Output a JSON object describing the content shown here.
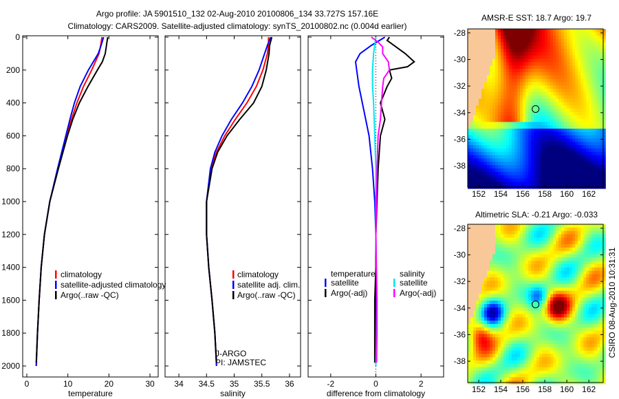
{
  "title_line1": "Argo profile: JA 5901510_132 02-Aug-2010 20100806_134 33.727S 157.16E",
  "title_line2": "Climatology: CARS2009. Satellite-adjusted climatology: synTS_20100802.nc (0.004d earlier)",
  "colors": {
    "climatology": "#ff0000",
    "satellite": "#0000ff",
    "argo": "#000000",
    "sal_satellite": "#00e5ee",
    "sal_argo": "#ff00ff",
    "land": "#f9c898"
  },
  "chart_data": [
    {
      "type": "line",
      "xlabel": "temperature",
      "xlim": [
        -1,
        32
      ],
      "xticks": [
        "0",
        "10",
        "20",
        "30"
      ],
      "xtick_values": [
        0,
        10,
        20,
        30
      ],
      "ylim": [
        0,
        2000
      ],
      "yticks": [
        "0",
        "200",
        "400",
        "600",
        "800",
        "1000",
        "1200",
        "1400",
        "1600",
        "1800",
        "2000"
      ],
      "ytick_values": [
        0,
        200,
        400,
        600,
        800,
        1000,
        1200,
        1400,
        1600,
        1800,
        2000
      ],
      "legend": [
        "climatology",
        "satellite-adjusted climatology",
        "Argo(..raw -QC)"
      ],
      "series": [
        {
          "name": "climatology",
          "color": "#ff0000",
          "depth": [
            0,
            50,
            100,
            200,
            300,
            400,
            500,
            600,
            800,
            1000,
            1200,
            1400,
            1600,
            1800,
            2000
          ],
          "values": [
            18.3,
            18.0,
            17.6,
            15.8,
            13.8,
            12.2,
            10.9,
            9.7,
            7.6,
            5.6,
            4.3,
            3.5,
            3.0,
            2.6,
            2.3
          ]
        },
        {
          "name": "satellite-adjusted climatology",
          "color": "#0000ff",
          "depth": [
            0,
            50,
            100,
            200,
            300,
            400,
            500,
            600,
            800,
            1000,
            1200,
            1400,
            1600,
            1800,
            2000
          ],
          "values": [
            18.7,
            18.1,
            17.4,
            15.0,
            13.0,
            11.6,
            10.5,
            9.5,
            7.5,
            5.6,
            4.3,
            3.5,
            3.0,
            2.6,
            2.3
          ]
        },
        {
          "name": "Argo(..raw -QC)",
          "color": "#000000",
          "depth": [
            0,
            50,
            100,
            150,
            200,
            300,
            400,
            500,
            600,
            800,
            1000,
            1200,
            1400,
            1600,
            1800,
            1980
          ],
          "values": [
            19.7,
            19.4,
            19.1,
            18.4,
            17.2,
            14.9,
            12.8,
            11.2,
            9.9,
            7.7,
            5.6,
            4.3,
            3.5,
            3.0,
            2.6,
            2.3
          ]
        }
      ]
    },
    {
      "type": "line",
      "xlabel": "salinity",
      "xlim": [
        33.75,
        36.2
      ],
      "xticks": [
        "34",
        "34.5",
        "35",
        "35.5",
        "36"
      ],
      "xtick_values": [
        34,
        34.5,
        35,
        35.5,
        36
      ],
      "ylim": [
        0,
        2000
      ],
      "legend": [
        "climatology",
        "satellite adj. clim.",
        "Argo(..raw -QC)"
      ],
      "annotation": [
        "J-ARGO",
        "PI: JAMSTEC"
      ],
      "series": [
        {
          "name": "climatology",
          "color": "#ff0000",
          "depth": [
            0,
            50,
            100,
            200,
            300,
            400,
            500,
            600,
            700,
            800,
            1000,
            1200,
            1400,
            1600,
            1800,
            2000
          ],
          "values": [
            35.62,
            35.62,
            35.6,
            35.52,
            35.4,
            35.23,
            35.02,
            34.83,
            34.68,
            34.58,
            34.5,
            34.5,
            34.54,
            34.6,
            34.65,
            34.68
          ]
        },
        {
          "name": "satellite adj. clim.",
          "color": "#0000ff",
          "depth": [
            0,
            50,
            100,
            200,
            300,
            400,
            500,
            600,
            700,
            800,
            1000,
            1200,
            1400,
            1600,
            1800,
            2000
          ],
          "values": [
            35.66,
            35.6,
            35.55,
            35.45,
            35.32,
            35.15,
            34.95,
            34.78,
            34.65,
            34.57,
            34.5,
            34.5,
            34.54,
            34.6,
            34.65,
            34.68
          ]
        },
        {
          "name": "Argo(..raw -QC)",
          "color": "#000000",
          "depth": [
            0,
            50,
            100,
            200,
            300,
            400,
            500,
            600,
            700,
            800,
            1000,
            1200,
            1400,
            1600,
            1800,
            1980
          ],
          "values": [
            35.68,
            35.64,
            35.63,
            35.58,
            35.5,
            35.35,
            35.1,
            34.87,
            34.7,
            34.6,
            34.5,
            34.5,
            34.54,
            34.6,
            34.65,
            34.68
          ]
        }
      ]
    },
    {
      "type": "line",
      "xlabel": "difference from climatology",
      "xlim": [
        -3,
        3.0
      ],
      "xticks": [
        "-2",
        "0",
        "2"
      ],
      "xtick_values": [
        -2,
        0,
        2
      ],
      "ylim": [
        0,
        2000
      ],
      "legend_temperature": [
        "temperature",
        "satellite",
        "Argo(-adj)"
      ],
      "legend_salinity": [
        "salinity",
        "satellite",
        "Argo(-adj)"
      ],
      "series": [
        {
          "name": "temperature satellite",
          "color": "#0000ff",
          "depth": [
            0,
            50,
            100,
            150,
            200,
            300,
            400,
            600,
            800,
            1000,
            1200,
            1400,
            1600,
            1800,
            2000
          ],
          "values": [
            0.4,
            -0.2,
            -0.7,
            -0.9,
            -0.85,
            -0.75,
            -0.6,
            -0.3,
            -0.15,
            -0.05,
            0,
            0,
            0,
            0,
            0
          ]
        },
        {
          "name": "temperature Argo(-adj)",
          "color": "#000000",
          "depth": [
            0,
            20,
            60,
            100,
            150,
            180,
            200,
            250,
            300,
            400,
            500,
            600,
            800,
            1000,
            1200,
            1400,
            1600,
            1800,
            1980
          ],
          "values": [
            0.6,
            0.5,
            0.9,
            1.3,
            1.7,
            1.4,
            0.6,
            0.7,
            0.5,
            0.2,
            0.4,
            0.2,
            0.1,
            0.05,
            0,
            0,
            -0.05,
            -0.05,
            -0.05
          ]
        },
        {
          "name": "salinity satellite",
          "color": "#00e5ee",
          "depth": [
            0,
            100,
            200,
            300,
            400,
            600,
            800,
            1000,
            1200,
            1400,
            1600,
            1800,
            2000
          ],
          "values": [
            0.0,
            -0.1,
            -0.15,
            -0.15,
            -0.1,
            -0.05,
            0,
            0,
            0,
            0.02,
            0.05,
            0.03,
            0
          ]
        },
        {
          "name": "salinity Argo(-adj)",
          "color": "#ff00ff",
          "depth": [
            0,
            30,
            60,
            100,
            150,
            200,
            250,
            300,
            400,
            500,
            600,
            800,
            1000,
            1200,
            1400,
            1600,
            1800,
            1980
          ],
          "values": [
            -0.2,
            0.1,
            0.3,
            0.3,
            0.55,
            0.6,
            0.35,
            0.3,
            0.25,
            0.2,
            0.1,
            0.05,
            0.02,
            0,
            0.02,
            0.05,
            0.05,
            0.03
          ]
        }
      ]
    },
    {
      "type": "heatmap",
      "title": "AMSR-E SST: 18.7 Argo: 19.7",
      "xticks": [
        "152",
        "154",
        "156",
        "158",
        "160",
        "162"
      ],
      "yticks": [
        "-28",
        "-30",
        "-32",
        "-34",
        "-36",
        "-38"
      ],
      "xlim": [
        151,
        163.3
      ],
      "ylim": [
        -39.6,
        -27.7
      ],
      "marker": {
        "lon": 157.16,
        "lat": -33.727
      }
    },
    {
      "type": "heatmap",
      "title": "Altimetric SLA: -0.21 Argo: -0.033",
      "xticks": [
        "152",
        "154",
        "156",
        "158",
        "160",
        "162"
      ],
      "yticks": [
        "-28",
        "-30",
        "-32",
        "-34",
        "-36",
        "-38"
      ],
      "xlim": [
        151,
        163.3
      ],
      "ylim": [
        -39.6,
        -27.7
      ],
      "marker": {
        "lon": 157.16,
        "lat": -33.727
      }
    }
  ],
  "footer_stamp": "CSIRO 08-Aug-2010 10:31:31"
}
